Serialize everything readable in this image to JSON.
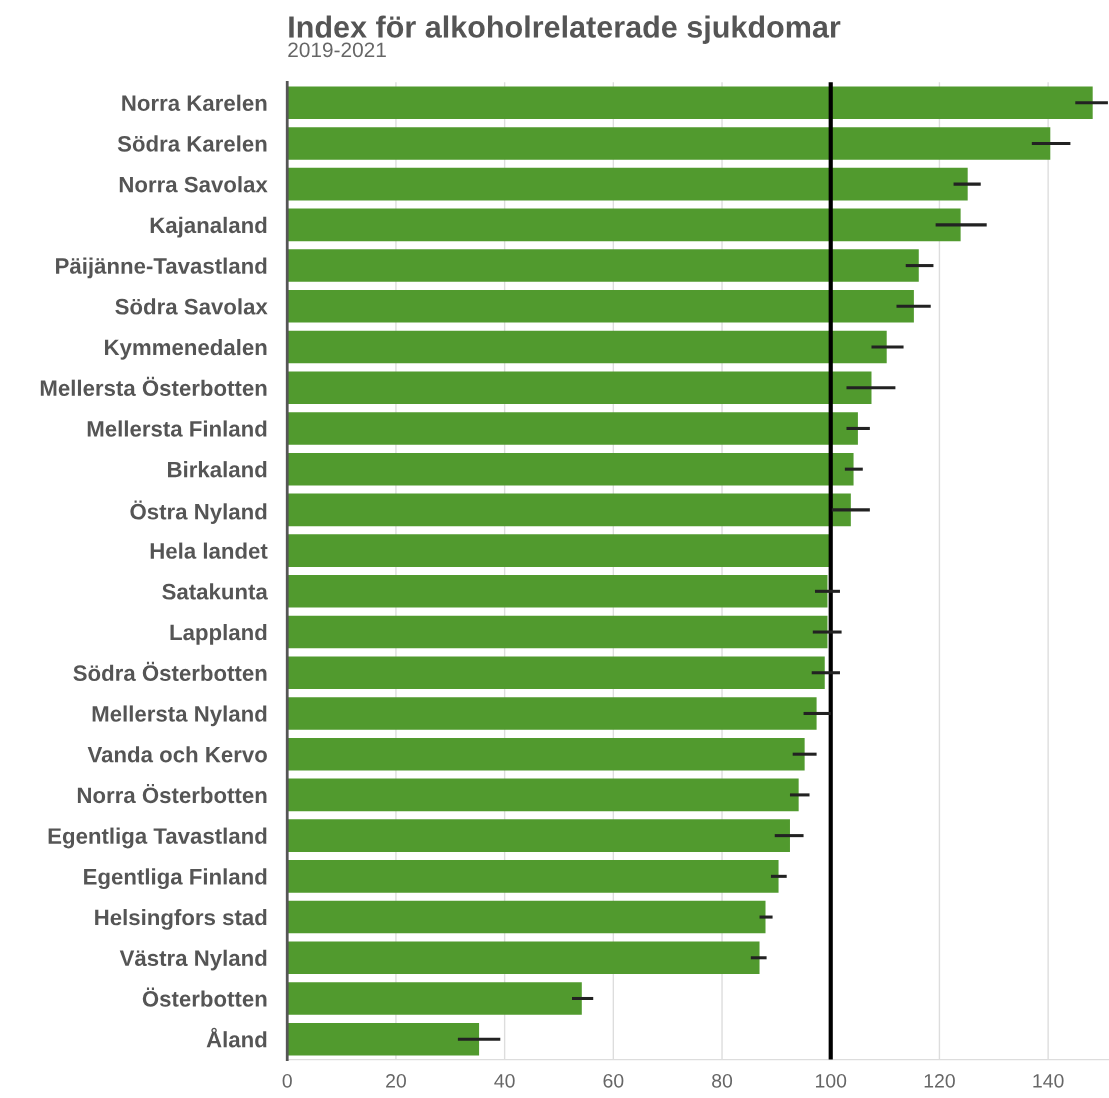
{
  "chart_data": {
    "type": "bar",
    "orientation": "horizontal",
    "title": "Index för alkoholrelaterade sjukdomar",
    "subtitle": "2019-2021",
    "categories": [
      "Norra Karelen",
      "Södra Karelen",
      "Norra Savolax",
      "Kajanaland",
      "Päijänne-Tavastland",
      "Södra Savolax",
      "Kymmenedalen",
      "Mellersta Österbotten",
      "Mellersta Finland",
      "Birkaland",
      "Östra Nyland",
      "Hela landet",
      "Satakunta",
      "Lappland",
      "Södra Österbotten",
      "Mellersta Nyland",
      "Vanda och Kervo",
      "Norra Österbotten",
      "Egentliga Tavastland",
      "Egentliga Finland",
      "Helsingfors stad",
      "Västra Nyland",
      "Österbotten",
      "Åland"
    ],
    "values": [
      148.2,
      140.4,
      125.2,
      123.9,
      116.2,
      115.3,
      110.3,
      107.5,
      105.0,
      104.2,
      103.7,
      100,
      99.4,
      99.4,
      98.9,
      97.4,
      95.2,
      94.1,
      92.5,
      90.4,
      88.0,
      86.9,
      54.2,
      35.3
    ],
    "errors": [
      [
        145.0,
        151.0
      ],
      [
        137.0,
        144.1
      ],
      [
        122.6,
        127.6
      ],
      [
        119.3,
        128.7
      ],
      [
        113.8,
        118.9
      ],
      [
        112.1,
        118.4
      ],
      [
        107.5,
        113.4
      ],
      [
        102.9,
        111.9
      ],
      [
        102.9,
        107.2
      ],
      [
        102.6,
        105.9
      ],
      [
        100.2,
        107.2
      ],
      null,
      [
        97.1,
        101.7
      ],
      [
        96.7,
        102.0
      ],
      [
        96.5,
        101.7
      ],
      [
        95.0,
        100.0
      ],
      [
        93.0,
        97.4
      ],
      [
        92.5,
        96.1
      ],
      [
        89.7,
        95.0
      ],
      [
        89.0,
        91.9
      ],
      [
        86.9,
        89.3
      ],
      [
        85.3,
        88.2
      ],
      [
        52.4,
        56.3
      ],
      [
        31.4,
        39.2
      ]
    ],
    "color": "#519a2e",
    "xlim": [
      0,
      151.2
    ],
    "xticks": [
      0,
      20,
      40,
      60,
      80,
      100,
      120,
      140
    ],
    "grid": "x",
    "ref_lines": [
      {
        "axis": "x",
        "value": 100,
        "color": "#000000"
      }
    ]
  }
}
